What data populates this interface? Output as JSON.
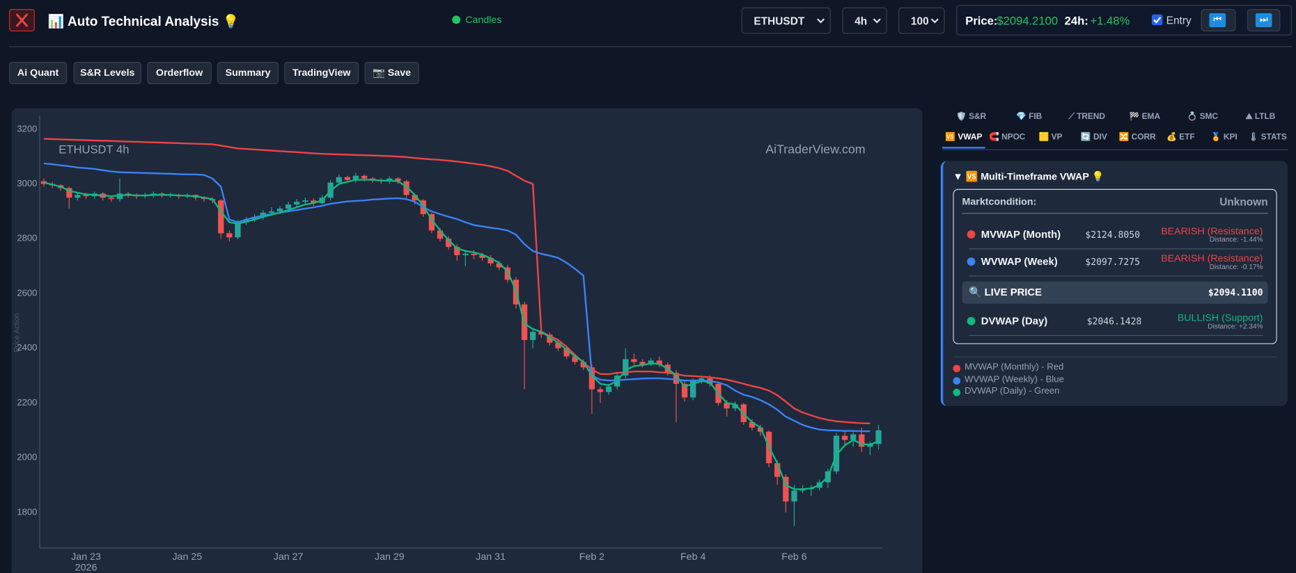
{
  "header": {
    "title": "📊 Auto Technical Analysis 💡",
    "mode": "Candles",
    "symbol": "ETHUSDT",
    "timeframe": "4h",
    "limit": "100",
    "price_label": "Price:",
    "price": "$2094.2100",
    "change_label": "24h:",
    "change": "+1.48%",
    "entry": "Entry",
    "prev_button": "⏮",
    "next_button": "⏭"
  },
  "toolbar": [
    "Ai Quant",
    "S&R Levels",
    "Orderflow",
    "Summary",
    "TradingView",
    "📷 Save"
  ],
  "panel": {
    "tabs_row1": [
      "🛡️ S&R",
      "💎 FIB",
      "⟋ TREND",
      "🏁 EMA",
      "💍 SMC",
      "⛰ LTLB"
    ],
    "tabs_row2": [
      "🆚 VWAP",
      "🧲 NPOC",
      "🟨 VP",
      "🔄 DIV",
      "🔀 CORR",
      "💰 ETF",
      "🏅 KPI",
      "🌡 STATS"
    ],
    "card_title": "▼ 🆚 Multi-Timeframe VWAP 💡",
    "market_label": "Marktcondition:",
    "market_value": "Unknown",
    "rows": [
      {
        "name": "MVWAP (Month)",
        "value": "$2124.8050",
        "signal": "BEARISH (Resistance)",
        "distance": "Distance: -1.44%"
      },
      {
        "name": "WVWAP (Week)",
        "value": "$2097.7275",
        "signal": "BEARISH (Resistance)",
        "distance": "Distance: -0.17%"
      },
      {
        "name": "DVWAP (Day)",
        "value": "$2046.1428",
        "signal": "BULLISH (Support)",
        "distance": "Distance: +2.34%"
      }
    ],
    "live": {
      "label": "🔍 LIVE PRICE",
      "value": "$2094.1100"
    }
  },
  "chart_data": {
    "type": "candlestick",
    "title": "ETHUSDT 4h",
    "watermark": "AiTraderView.com",
    "ylabel": "Price Action",
    "year": "2026",
    "ylim": [
      1670,
      3250
    ],
    "yticks": [
      1800,
      2000,
      2200,
      2400,
      2600,
      2800,
      3000,
      3200
    ],
    "grid": false,
    "up_color": "#26a69a",
    "down_color": "#ef5350",
    "categories": [
      null,
      null,
      null,
      null,
      null,
      "Jan 23",
      null,
      null,
      null,
      null,
      null,
      null,
      null,
      null,
      null,
      null,
      null,
      "Jan 25",
      null,
      null,
      null,
      null,
      null,
      null,
      null,
      null,
      null,
      null,
      null,
      "Jan 27",
      null,
      null,
      null,
      null,
      null,
      null,
      null,
      null,
      null,
      null,
      null,
      "Jan 29",
      null,
      null,
      null,
      null,
      null,
      null,
      null,
      null,
      null,
      null,
      null,
      "Jan 31",
      null,
      null,
      null,
      null,
      null,
      null,
      null,
      null,
      null,
      null,
      null,
      "Feb 2",
      null,
      null,
      null,
      null,
      null,
      null,
      null,
      null,
      null,
      null,
      null,
      "Feb 4",
      null,
      null,
      null,
      null,
      null,
      null,
      null,
      null,
      null,
      null,
      null,
      "Feb 6",
      null,
      null,
      null,
      null,
      null,
      null,
      null,
      null,
      null,
      null
    ],
    "open": [
      3010,
      3000,
      2995,
      2985,
      2950,
      2960,
      2955,
      2965,
      2950,
      2945,
      2965,
      2960,
      2955,
      2960,
      2965,
      2960,
      2960,
      2955,
      2960,
      2950,
      2945,
      2940,
      2820,
      2805,
      2860,
      2870,
      2880,
      2895,
      2900,
      2910,
      2925,
      2935,
      2940,
      2930,
      2950,
      3005,
      3025,
      3015,
      3030,
      3020,
      3015,
      3010,
      3020,
      3010,
      2960,
      2940,
      2890,
      2830,
      2800,
      2770,
      2740,
      2745,
      2740,
      2730,
      2710,
      2695,
      2650,
      2560,
      2430,
      2460,
      2450,
      2420,
      2400,
      2370,
      2350,
      2330,
      2250,
      2240,
      2260,
      2300,
      2360,
      2350,
      2340,
      2355,
      2340,
      2310,
      2270,
      2220,
      2280,
      2290,
      2270,
      2200,
      2180,
      2195,
      2130,
      2110,
      2095,
      1980,
      1930,
      1840,
      1880,
      1885,
      1890,
      1910,
      1950,
      2080,
      2065,
      2085,
      2040,
      2050
    ],
    "high": [
      3020,
      3008,
      3000,
      2990,
      2968,
      2968,
      2972,
      2970,
      2958,
      3020,
      2970,
      2966,
      2968,
      2972,
      2970,
      2968,
      2965,
      2966,
      2962,
      2955,
      2950,
      2945,
      2830,
      2868,
      2880,
      2890,
      2905,
      2915,
      2920,
      2935,
      2945,
      2950,
      2948,
      2960,
      3015,
      3035,
      3030,
      3040,
      3035,
      3025,
      3022,
      3028,
      3025,
      3015,
      2950,
      2945,
      2895,
      2840,
      2810,
      2780,
      2760,
      2758,
      2748,
      2740,
      2718,
      2705,
      2660,
      2570,
      2475,
      2468,
      2458,
      2430,
      2410,
      2380,
      2360,
      2340,
      2260,
      2270,
      2310,
      2400,
      2380,
      2360,
      2365,
      2370,
      2348,
      2320,
      2280,
      2290,
      2300,
      2300,
      2275,
      2210,
      2205,
      2200,
      2140,
      2120,
      2100,
      1990,
      1940,
      1900,
      1900,
      1900,
      1920,
      1960,
      2090,
      2100,
      2095,
      2110,
      2060,
      2120
    ],
    "low": [
      2990,
      2985,
      2975,
      2910,
      2940,
      2945,
      2945,
      2940,
      2935,
      2935,
      2950,
      2945,
      2948,
      2950,
      2950,
      2950,
      2945,
      2948,
      2940,
      2935,
      2930,
      2800,
      2790,
      2798,
      2850,
      2862,
      2870,
      2885,
      2890,
      2900,
      2915,
      2925,
      2920,
      2925,
      2940,
      2995,
      3005,
      3005,
      3010,
      3005,
      3000,
      3000,
      3000,
      2950,
      2925,
      2880,
      2820,
      2790,
      2760,
      2720,
      2700,
      2725,
      2720,
      2700,
      2685,
      2640,
      2545,
      2250,
      2400,
      2438,
      2410,
      2390,
      2360,
      2340,
      2320,
      2160,
      2200,
      2230,
      2250,
      2290,
      2340,
      2330,
      2335,
      2330,
      2300,
      2130,
      2205,
      2210,
      2270,
      2260,
      2190,
      2150,
      2170,
      2120,
      2100,
      2080,
      1965,
      1900,
      1800,
      1750,
      1870,
      1860,
      1880,
      1890,
      1940,
      2040,
      2040,
      2020,
      2010,
      2030
    ],
    "close": [
      3000,
      2995,
      2985,
      2950,
      2960,
      2955,
      2965,
      2950,
      2945,
      2965,
      2960,
      2955,
      2960,
      2965,
      2960,
      2960,
      2955,
      2960,
      2950,
      2945,
      2940,
      2820,
      2805,
      2860,
      2870,
      2880,
      2895,
      2900,
      2910,
      2925,
      2935,
      2940,
      2930,
      2950,
      3005,
      3025,
      3015,
      3030,
      3020,
      3015,
      3010,
      3020,
      3010,
      2960,
      2940,
      2890,
      2830,
      2800,
      2770,
      2740,
      2745,
      2740,
      2730,
      2710,
      2695,
      2650,
      2560,
      2430,
      2460,
      2450,
      2420,
      2400,
      2370,
      2350,
      2330,
      2250,
      2240,
      2260,
      2300,
      2360,
      2350,
      2340,
      2355,
      2340,
      2310,
      2270,
      2220,
      2280,
      2290,
      2270,
      2200,
      2180,
      2195,
      2130,
      2110,
      2095,
      1980,
      1930,
      1840,
      1880,
      1885,
      1890,
      1910,
      1950,
      2080,
      2065,
      2085,
      2040,
      2050,
      2100
    ],
    "series": [
      {
        "name": "MVWAP (Monthly) - Red",
        "color": "#ef4444",
        "values": [
          3165,
          3164,
          3163,
          3162,
          3161,
          3160,
          3159,
          3158,
          3157,
          3156,
          3155,
          3154,
          3153,
          3152,
          3151,
          3150,
          3149,
          3148,
          3147,
          3146,
          3145,
          3140,
          3135,
          3130,
          3128,
          3126,
          3124,
          3122,
          3120,
          3118,
          3116,
          3114,
          3112,
          3110,
          3109,
          3108,
          3107,
          3106,
          3105,
          3104,
          3103,
          3102,
          3100,
          3098,
          3095,
          3092,
          3090,
          3088,
          3085,
          3082,
          3078,
          3074,
          3070,
          3065,
          3058,
          3048,
          3030,
          3012,
          3000,
          2460,
          2445,
          2430,
          2405,
          2375,
          2348,
          2322,
          2306,
          2305,
          2310,
          2312,
          2315,
          2315,
          2315,
          2312,
          2310,
          2305,
          2300,
          2298,
          2296,
          2294,
          2290,
          2285,
          2278,
          2270,
          2262,
          2255,
          2245,
          2228,
          2205,
          2180,
          2165,
          2155,
          2145,
          2138,
          2133,
          2130,
          2128,
          2126,
          2125,
          null
        ]
      },
      {
        "name": "WVWAP (Weekly) - Blue",
        "color": "#3b82f6",
        "values": [
          3075,
          3072,
          3068,
          3065,
          3060,
          3058,
          3055,
          3050,
          3046,
          3043,
          3042,
          3041,
          3040,
          3039,
          3038,
          3037,
          3036,
          3035,
          3035,
          3033,
          3020,
          2990,
          2870,
          2860,
          2870,
          2878,
          2885,
          2890,
          2895,
          2900,
          2905,
          2910,
          2915,
          2920,
          2928,
          2932,
          2936,
          2938,
          2940,
          2943,
          2945,
          2947,
          2948,
          2945,
          2935,
          2915,
          2900,
          2890,
          2880,
          2872,
          2860,
          2850,
          2845,
          2840,
          2836,
          2830,
          2815,
          2780,
          2755,
          2745,
          2738,
          2730,
          2712,
          2690,
          2665,
          2300,
          2285,
          2282,
          2283,
          2285,
          2287,
          2289,
          2290,
          2290,
          2288,
          2285,
          2282,
          2282,
          2282,
          2280,
          2275,
          2265,
          2245,
          2230,
          2222,
          2210,
          2195,
          2175,
          2150,
          2135,
          2120,
          2110,
          2103,
          2100,
          2099,
          2098,
          2098,
          2097,
          2097,
          null
        ]
      },
      {
        "name": "DVWAP (Daily) - Green",
        "color": "#10b981",
        "values": [
          3005,
          2998,
          2990,
          2975,
          2968,
          2962,
          2960,
          2958,
          2955,
          2958,
          2960,
          2958,
          2958,
          2960,
          2960,
          2960,
          2958,
          2957,
          2955,
          2950,
          2945,
          2900,
          2860,
          2855,
          2862,
          2870,
          2880,
          2888,
          2895,
          2905,
          2915,
          2925,
          2930,
          2940,
          2975,
          3000,
          3008,
          3015,
          3015,
          3015,
          3012,
          3012,
          3010,
          2990,
          2960,
          2920,
          2870,
          2830,
          2795,
          2765,
          2755,
          2750,
          2742,
          2728,
          2712,
          2680,
          2610,
          2490,
          2470,
          2460,
          2440,
          2420,
          2395,
          2370,
          2350,
          2300,
          2270,
          2265,
          2280,
          2320,
          2335,
          2338,
          2345,
          2342,
          2325,
          2300,
          2260,
          2270,
          2280,
          2275,
          2235,
          2200,
          2195,
          2160,
          2130,
          2110,
          2040,
          1980,
          1900,
          1885,
          1885,
          1888,
          1900,
          1930,
          2010,
          2045,
          2065,
          2050,
          2048,
          2060
        ]
      }
    ]
  }
}
